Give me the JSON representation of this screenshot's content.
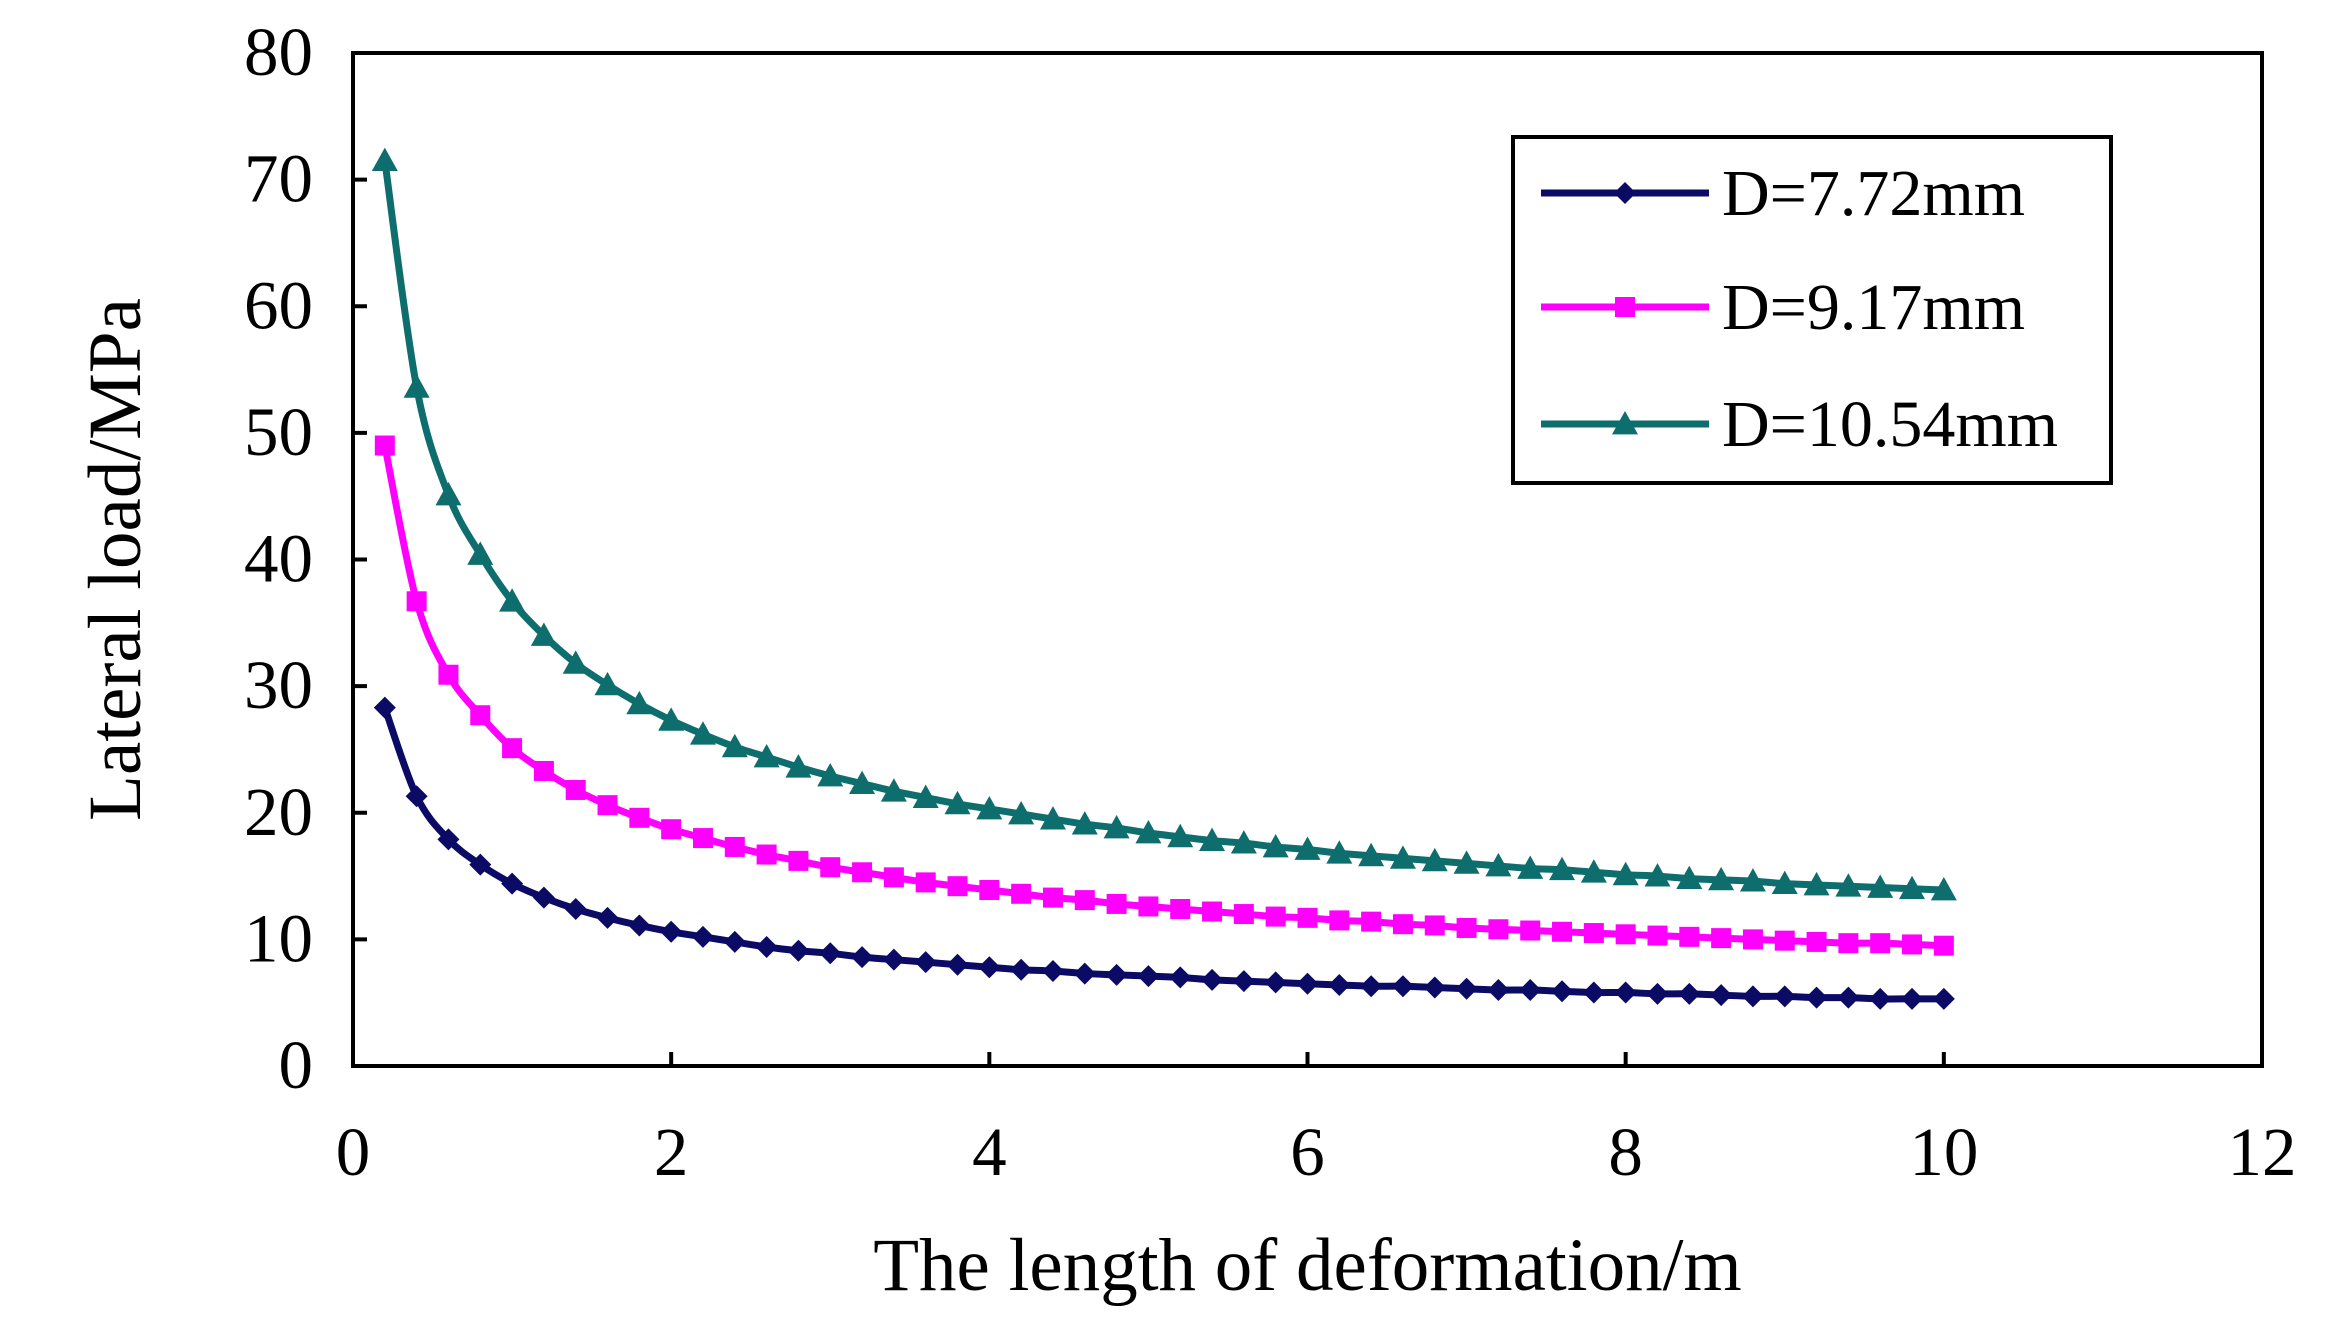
{
  "chart_data": {
    "type": "line",
    "title": "",
    "xlabel": "The length of deformation/m",
    "ylabel": "Lateral load/MPa",
    "xlim": [
      0,
      12
    ],
    "ylim": [
      0,
      80
    ],
    "xticks": [
      0,
      2,
      4,
      6,
      8,
      10,
      12
    ],
    "yticks": [
      0,
      10,
      20,
      30,
      40,
      50,
      60,
      70,
      80
    ],
    "grid": false,
    "legend_position": "top-right",
    "x": [
      0.2,
      0.4,
      0.6,
      0.8,
      1.0,
      1.2,
      1.4,
      1.6,
      1.8,
      2.0,
      2.2,
      2.4,
      2.6,
      2.8,
      3.0,
      3.2,
      3.4,
      3.6,
      3.8,
      4.0,
      4.2,
      4.4,
      4.6,
      4.8,
      5.0,
      5.2,
      5.4,
      5.6,
      5.8,
      6.0,
      6.2,
      6.4,
      6.6,
      6.8,
      7.0,
      7.2,
      7.4,
      7.6,
      7.8,
      8.0,
      8.2,
      8.4,
      8.6,
      8.8,
      9.0,
      9.2,
      9.4,
      9.6,
      9.8,
      10.0
    ],
    "series": [
      {
        "name": "D=7.72mm",
        "color": "#0b0b66",
        "marker": "diamond",
        "values": [
          28.3,
          21.3,
          17.9,
          15.9,
          14.4,
          13.3,
          12.4,
          11.7,
          11.1,
          10.6,
          10.2,
          9.8,
          9.4,
          9.1,
          8.9,
          8.6,
          8.4,
          8.2,
          8.0,
          7.8,
          7.6,
          7.5,
          7.3,
          7.2,
          7.1,
          7.0,
          6.8,
          6.7,
          6.6,
          6.5,
          6.4,
          6.3,
          6.3,
          6.2,
          6.1,
          6.0,
          6.0,
          5.9,
          5.8,
          5.8,
          5.7,
          5.7,
          5.6,
          5.5,
          5.5,
          5.4,
          5.4,
          5.3,
          5.3,
          5.3
        ]
      },
      {
        "name": "D=9.17mm",
        "color": "#ff00ff",
        "marker": "square",
        "values": [
          49.0,
          36.7,
          30.9,
          27.7,
          25.1,
          23.3,
          21.8,
          20.6,
          19.6,
          18.7,
          18.0,
          17.3,
          16.7,
          16.2,
          15.7,
          15.3,
          14.9,
          14.5,
          14.2,
          13.9,
          13.6,
          13.3,
          13.1,
          12.8,
          12.6,
          12.4,
          12.2,
          12.0,
          11.8,
          11.7,
          11.5,
          11.4,
          11.2,
          11.1,
          10.9,
          10.8,
          10.7,
          10.6,
          10.5,
          10.4,
          10.3,
          10.2,
          10.1,
          10.0,
          9.9,
          9.8,
          9.7,
          9.7,
          9.6,
          9.5
        ]
      },
      {
        "name": "D=10.54mm",
        "color": "#0e6e6e",
        "marker": "triangle",
        "values": [
          71.5,
          53.6,
          45.1,
          40.4,
          36.7,
          34.0,
          31.8,
          30.1,
          28.6,
          27.3,
          26.2,
          25.2,
          24.4,
          23.6,
          22.9,
          22.3,
          21.7,
          21.2,
          20.7,
          20.3,
          19.9,
          19.5,
          19.1,
          18.8,
          18.4,
          18.1,
          17.8,
          17.6,
          17.3,
          17.1,
          16.8,
          16.6,
          16.4,
          16.2,
          16.0,
          15.8,
          15.6,
          15.5,
          15.3,
          15.1,
          15.0,
          14.8,
          14.7,
          14.6,
          14.4,
          14.3,
          14.2,
          14.1,
          14.0,
          13.9
        ]
      }
    ]
  }
}
